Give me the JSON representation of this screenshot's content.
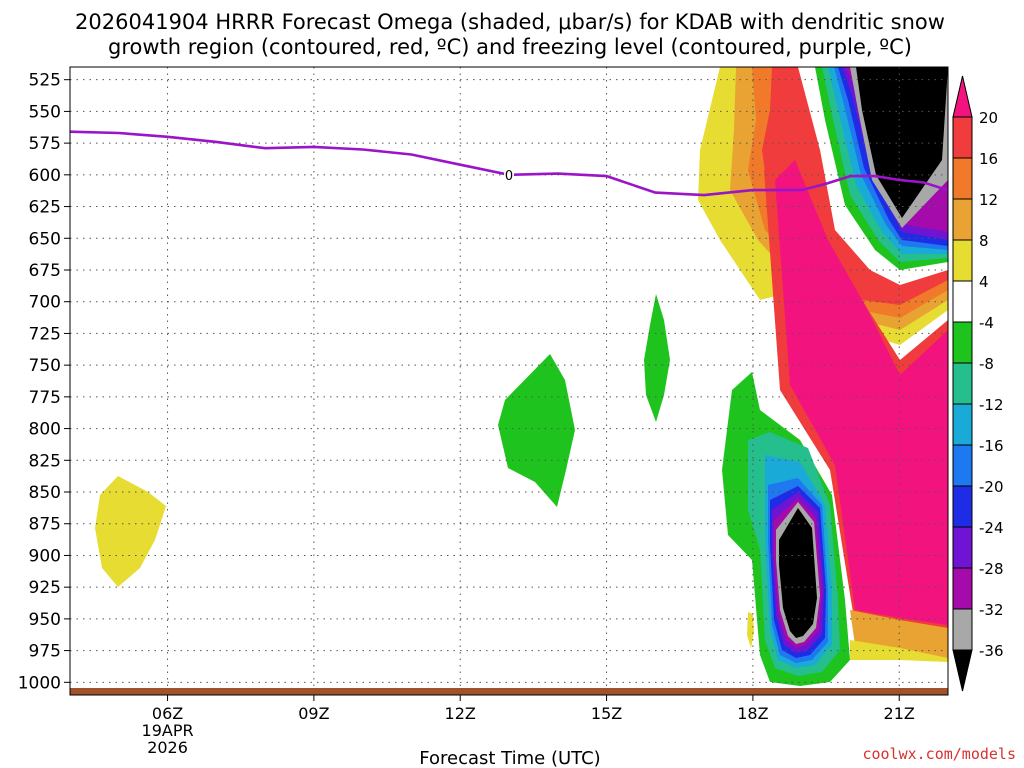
{
  "chart_data": {
    "type": "contour",
    "title_line1": "2026041904 HRRR Forecast Omega (shaded, μbar/s) for KDAB with dendritic snow",
    "title_line2": "growth region (contoured, red, ºC) and freezing level (contoured, purple, ºC)",
    "xlabel": "Forecast Time (UTC)",
    "x_ticks": [
      {
        "hour": 6,
        "label": "06Z",
        "sub1": "19APR",
        "sub2": "2026"
      },
      {
        "hour": 9,
        "label": "09Z"
      },
      {
        "hour": 12,
        "label": "12Z"
      },
      {
        "hour": 15,
        "label": "15Z"
      },
      {
        "hour": 18,
        "label": "18Z"
      },
      {
        "hour": 21,
        "label": "21Z"
      }
    ],
    "xlim_hours": [
      4,
      22
    ],
    "y_ticks": [
      "525",
      "550",
      "575",
      "600",
      "625",
      "650",
      "675",
      "700",
      "725",
      "750",
      "775",
      "800",
      "825",
      "850",
      "875",
      "900",
      "925",
      "950",
      "975",
      "1000"
    ],
    "ylim_hpa": [
      515,
      1010
    ],
    "freezing_level": {
      "label": "0",
      "label_hour": 13.0,
      "hours": [
        4.0,
        5.0,
        6.0,
        7.0,
        8.0,
        9.0,
        10.0,
        11.0,
        12.0,
        13.0,
        14.0,
        15.0,
        16.0,
        17.0,
        18.0,
        19.0,
        19.5,
        20.0,
        20.5,
        21.0,
        21.5,
        22.0
      ],
      "pressure_hpa": [
        566,
        567,
        570,
        574,
        579,
        578,
        580,
        584,
        592,
        600,
        599,
        601,
        614,
        616,
        612,
        612,
        607,
        601,
        601,
        604,
        606,
        612
      ]
    },
    "colorbar": {
      "levels": [
        "20",
        "16",
        "12",
        "8",
        "4",
        "-4",
        "-8",
        "-12",
        "-16",
        "-20",
        "-24",
        "-28",
        "-32",
        "-36"
      ],
      "colors": [
        "#f2137f",
        "#f03c3c",
        "#f07a2a",
        "#e8a332",
        "#e7dc32",
        "#ffffff",
        "#1ec31e",
        "#24bf8c",
        "#1aaad8",
        "#1e78f0",
        "#1e2ce6",
        "#6e14d2",
        "#a50aaa",
        "#a8a8a8",
        "#000000"
      ]
    },
    "credit": "coolwx.com/models"
  }
}
